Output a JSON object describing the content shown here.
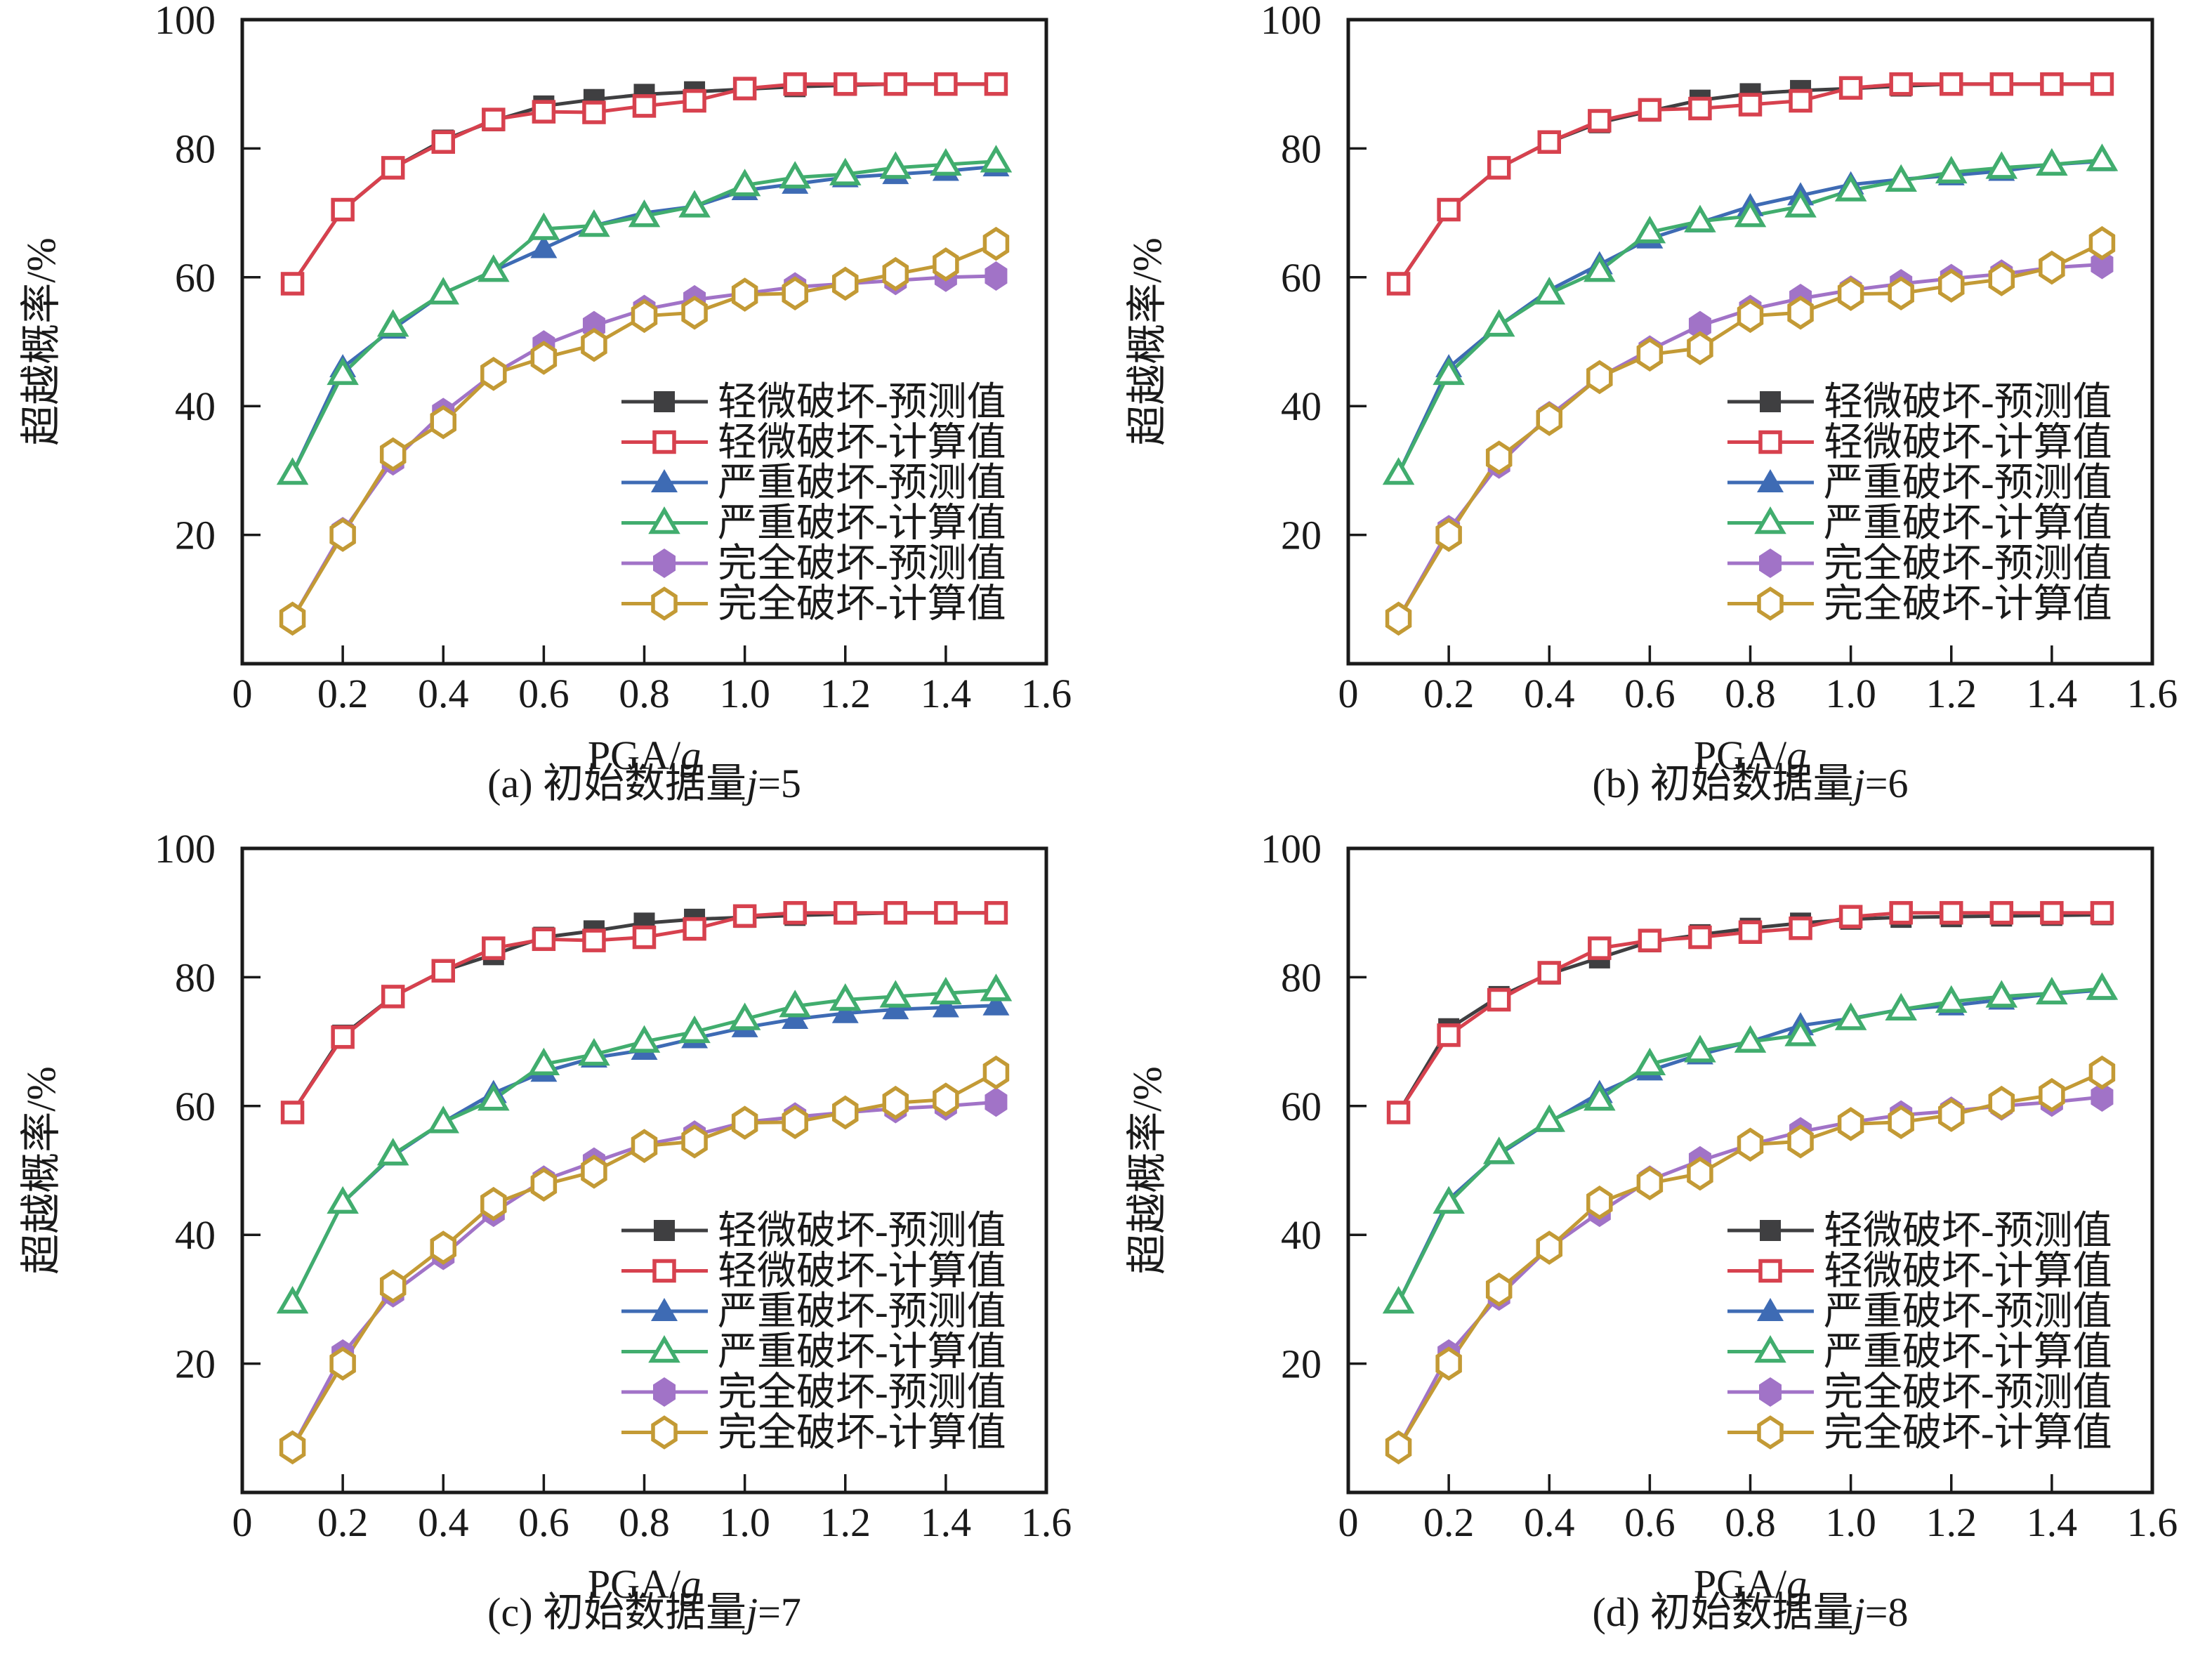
{
  "figure": {
    "background": "#ffffff",
    "axis_color": "#1a1a1a",
    "ylabel": "超越概率/%",
    "xlabel_prefix": "PGA/",
    "xlabel_italic": "g"
  },
  "legend": {
    "position": "inside-lower-right",
    "items": [
      {
        "label": "轻微破坏-预测值",
        "marker": "square-filled",
        "color": "#3f3f41"
      },
      {
        "label": "轻微破坏-计算值",
        "marker": "square-open",
        "color": "#d7414e"
      },
      {
        "label": "严重破坏-预测值",
        "marker": "triangle-filled",
        "color": "#3e6bb4"
      },
      {
        "label": "严重破坏-计算值",
        "marker": "triangle-open",
        "color": "#41ad6e"
      },
      {
        "label": "完全破坏-预测值",
        "marker": "hexagon-filled",
        "color": "#a173c7"
      },
      {
        "label": "完全破坏-计算值",
        "marker": "hexagon-open",
        "color": "#c39a35"
      }
    ]
  },
  "chart_data": [
    {
      "type": "line",
      "caption": {
        "pre": "(a) 初始数据量",
        "var": "j",
        "suffix": "=5"
      },
      "xlabel": "PGA/g",
      "ylabel": "超越概率/%",
      "xlim": [
        0,
        1.6
      ],
      "ylim": [
        0,
        100
      ],
      "xticks": [
        0,
        0.2,
        0.4,
        0.6,
        0.8,
        1.0,
        1.2,
        1.4,
        1.6
      ],
      "yticks": [
        20,
        40,
        60,
        80,
        100
      ],
      "grid": false,
      "x": [
        0.1,
        0.2,
        0.3,
        0.4,
        0.5,
        0.6,
        0.7,
        0.8,
        0.9,
        1.0,
        1.1,
        1.2,
        1.3,
        1.4,
        1.5
      ],
      "series": [
        {
          "name": "轻微破坏-预测值",
          "values": [
            59,
            70.5,
            77,
            81.3,
            84.3,
            86.6,
            87.6,
            88.4,
            88.8,
            89.2,
            89.6,
            89.8,
            90,
            90,
            90
          ]
        },
        {
          "name": "轻微破坏-计算值",
          "values": [
            59,
            70.5,
            77,
            81,
            84.5,
            85.7,
            85.6,
            86.6,
            87.4,
            89.3,
            90,
            90,
            90,
            90,
            90
          ]
        },
        {
          "name": "严重破坏-预测值",
          "values": [
            29.5,
            46,
            52,
            57.5,
            61,
            64.5,
            68,
            70,
            71,
            73.5,
            74.5,
            75.5,
            76,
            76.5,
            77.2
          ]
        },
        {
          "name": "严重破坏-计算值",
          "values": [
            29.5,
            45,
            52.5,
            57.5,
            61,
            67.5,
            68,
            69.5,
            71,
            74.3,
            75.5,
            76,
            77,
            77.5,
            78
          ]
        },
        {
          "name": "完全破坏-预测值",
          "values": [
            7,
            20.5,
            31.5,
            39,
            45,
            49.5,
            52.5,
            55,
            56.5,
            57.5,
            58.5,
            59,
            59.5,
            60,
            60.2
          ]
        },
        {
          "name": "完全破坏-计算值",
          "values": [
            7,
            20,
            32.5,
            37.5,
            45,
            47.5,
            49.5,
            54,
            54.5,
            57.3,
            57.5,
            59,
            60.5,
            62,
            65.2
          ]
        }
      ]
    },
    {
      "type": "line",
      "caption": {
        "pre": "(b) 初始数据量",
        "var": "j",
        "suffix": "=6"
      },
      "xlabel": "PGA/g",
      "ylabel": "超越概率/%",
      "xlim": [
        0,
        1.6
      ],
      "ylim": [
        0,
        100
      ],
      "xticks": [
        0,
        0.2,
        0.4,
        0.6,
        0.8,
        1.0,
        1.2,
        1.4,
        1.6
      ],
      "yticks": [
        20,
        40,
        60,
        80,
        100
      ],
      "grid": false,
      "x": [
        0.1,
        0.2,
        0.3,
        0.4,
        0.5,
        0.6,
        0.7,
        0.8,
        0.9,
        1.0,
        1.1,
        1.2,
        1.3,
        1.4,
        1.5
      ],
      "series": [
        {
          "name": "轻微破坏-预测值",
          "values": [
            59,
            70.5,
            77,
            81,
            84,
            85.8,
            87.5,
            88.5,
            89,
            89.3,
            89.7,
            90,
            90,
            90,
            90
          ]
        },
        {
          "name": "轻微破坏-计算值",
          "values": [
            59,
            70.5,
            77,
            81,
            84.3,
            86,
            86.2,
            86.8,
            87.4,
            89.4,
            90,
            90,
            90,
            90,
            90
          ]
        },
        {
          "name": "严重破坏-预测值",
          "values": [
            29.5,
            46,
            52.5,
            58,
            62,
            66,
            68.5,
            71,
            72.7,
            74.4,
            75.2,
            75.8,
            76.5,
            77.5,
            78
          ]
        },
        {
          "name": "严重破坏-计算值",
          "values": [
            29.5,
            45,
            52.5,
            57.5,
            61,
            67,
            68.7,
            69.5,
            71,
            73.5,
            75,
            76.3,
            77,
            77.5,
            78.2
          ]
        },
        {
          "name": "完全破坏-预测值",
          "values": [
            7,
            20.8,
            31,
            38.5,
            44.5,
            48.7,
            52.5,
            55,
            56.7,
            58,
            59,
            59.8,
            60.5,
            61.5,
            62
          ]
        },
        {
          "name": "完全破坏-计算值",
          "values": [
            7,
            20,
            32,
            38,
            44.5,
            48,
            49,
            54,
            54.5,
            57.4,
            57.5,
            58.7,
            59.7,
            61.5,
            65.3
          ]
        }
      ]
    },
    {
      "type": "line",
      "caption": {
        "pre": "(c) 初始数据量",
        "var": "j",
        "suffix": "=7"
      },
      "xlabel": "PGA/g",
      "ylabel": "超越概率/%",
      "xlim": [
        0,
        1.6
      ],
      "ylim": [
        0,
        100
      ],
      "xticks": [
        0,
        0.2,
        0.4,
        0.6,
        0.8,
        1.0,
        1.2,
        1.4,
        1.6
      ],
      "yticks": [
        20,
        40,
        60,
        80,
        100
      ],
      "grid": false,
      "x": [
        0.1,
        0.2,
        0.3,
        0.4,
        0.5,
        0.6,
        0.7,
        0.8,
        0.9,
        1.0,
        1.1,
        1.2,
        1.3,
        1.4,
        1.5
      ],
      "series": [
        {
          "name": "轻微破坏-预测值",
          "values": [
            59,
            71,
            77,
            81,
            83.5,
            86.2,
            87.2,
            88.4,
            89,
            89.3,
            89.6,
            89.8,
            90,
            90,
            90
          ]
        },
        {
          "name": "轻微破坏-计算值",
          "values": [
            59,
            70.7,
            77,
            81,
            84.5,
            85.9,
            85.7,
            86.2,
            87.5,
            89.5,
            90,
            90,
            90,
            90,
            90
          ]
        },
        {
          "name": "严重破坏-预测值",
          "values": [
            29.5,
            45,
            52.3,
            57.5,
            62,
            65.3,
            67.5,
            68.7,
            70.5,
            72.2,
            73.5,
            74.4,
            75,
            75.3,
            75.6
          ]
        },
        {
          "name": "严重破坏-计算值",
          "values": [
            29.5,
            45,
            52.5,
            57.5,
            61,
            66.5,
            68,
            70,
            71.5,
            73.5,
            75.5,
            76.5,
            77,
            77.5,
            78
          ]
        },
        {
          "name": "完全破坏-预测值",
          "values": [
            7,
            21.5,
            31,
            36.8,
            43.5,
            48.5,
            51.3,
            54,
            55.5,
            57.5,
            58.3,
            59,
            59.6,
            60,
            60.6
          ]
        },
        {
          "name": "完全破坏-计算值",
          "values": [
            7,
            20,
            32,
            38,
            44.8,
            47.8,
            49.8,
            53.8,
            54.5,
            57.4,
            57.5,
            59,
            60.5,
            61,
            65.2
          ]
        }
      ]
    },
    {
      "type": "line",
      "caption": {
        "pre": "(d) 初始数据量",
        "var": "j",
        "suffix": "=8"
      },
      "xlabel": "PGA/g",
      "ylabel": "超越概率/%",
      "xlim": [
        0,
        1.6
      ],
      "ylim": [
        0,
        100
      ],
      "xticks": [
        0,
        0.2,
        0.4,
        0.6,
        0.8,
        1.0,
        1.2,
        1.4,
        1.6
      ],
      "yticks": [
        20,
        40,
        60,
        80,
        100
      ],
      "grid": false,
      "x": [
        0.1,
        0.2,
        0.3,
        0.4,
        0.5,
        0.6,
        0.7,
        0.8,
        0.9,
        1.0,
        1.1,
        1.2,
        1.3,
        1.4,
        1.5
      ],
      "series": [
        {
          "name": "轻微破坏-预测值",
          "values": [
            59,
            72,
            77,
            80.5,
            83,
            85.5,
            86.6,
            87.6,
            88.4,
            89,
            89.3,
            89.4,
            89.5,
            89.6,
            89.7
          ]
        },
        {
          "name": "轻微破坏-计算值",
          "values": [
            59,
            71,
            76.5,
            80.7,
            84.5,
            85.7,
            86.2,
            87,
            87.6,
            89.4,
            90,
            90,
            90,
            90,
            90
          ]
        },
        {
          "name": "严重破坏-预测值",
          "values": [
            29.5,
            45.5,
            52.5,
            57.5,
            62,
            65.5,
            68,
            70,
            72.5,
            73.6,
            75,
            75.6,
            76.5,
            77.4,
            78
          ]
        },
        {
          "name": "严重破坏-计算值",
          "values": [
            29.5,
            45,
            52.7,
            57.7,
            61,
            66.5,
            68.5,
            70,
            71,
            73.5,
            75,
            76.2,
            77,
            77.5,
            78.2
          ]
        },
        {
          "name": "完全破坏-预测值",
          "values": [
            7,
            21.5,
            30.5,
            38,
            43.5,
            48.5,
            51.5,
            54,
            56,
            57.5,
            58.6,
            59.2,
            60,
            60.6,
            61.4
          ]
        },
        {
          "name": "完全破坏-计算值",
          "values": [
            7,
            20,
            31.5,
            38,
            45,
            48,
            49.5,
            54,
            54.5,
            57.2,
            57.5,
            58.6,
            60.5,
            61.7,
            65.2
          ]
        }
      ]
    }
  ]
}
